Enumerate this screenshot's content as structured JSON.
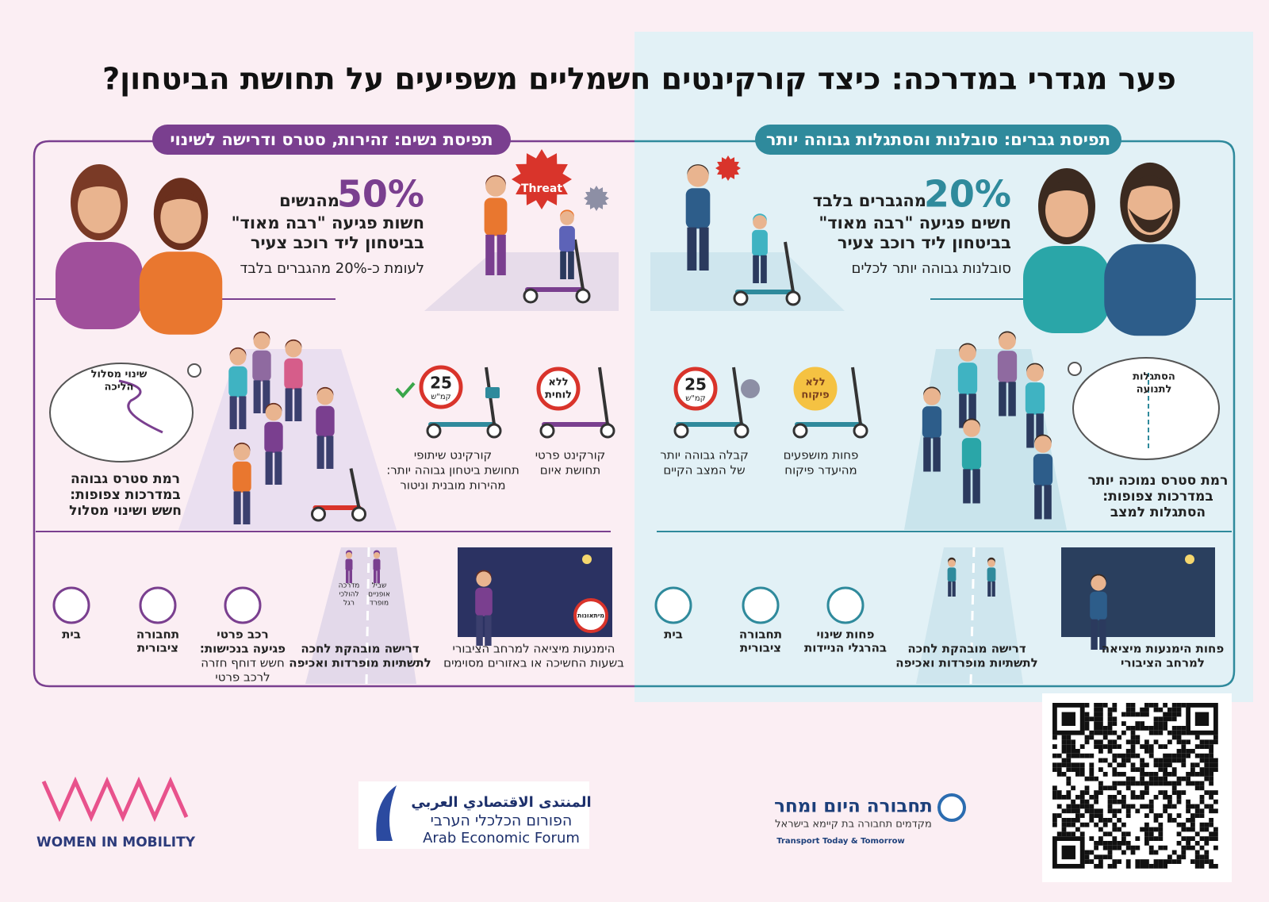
{
  "title": "פער מגדרי במדרכה: כיצד קורקינטים חשמליים משפיעים על תחושת הביטחון?",
  "women": {
    "header": "תפיסת נשים: זהירות, סטרס ודרישה לשינוי",
    "stat": {
      "value": "50%",
      "lines": [
        "מהנשים",
        "חשות פגיעה \"רבה מאוד\"",
        "בביטחון ליד רוכב צעיר"
      ],
      "note": "לעומת כ-20% מהגברים בלבד"
    },
    "threat_badge": "Threat",
    "thought": [
      "שינוי מסלול",
      "הליכה"
    ],
    "stress": [
      "רמת סטרס גבוהה",
      "במדרכות צפופות:",
      "חשש ושינוי מסלול"
    ],
    "private_scooter": {
      "sign": [
        "ללא",
        "לוחית"
      ],
      "caption": [
        "קורקינט פרטי",
        "תחושת איום"
      ]
    },
    "shared_scooter": {
      "sign": [
        "25",
        "קמ\"ש"
      ],
      "caption": [
        "קורקינט שיתופי",
        "תחושת ביטחון גבוהה יותר:",
        "מהירות מובנית וניטור"
      ]
    },
    "night": {
      "sign": "מיתאונות",
      "caption": [
        "הימנעות מיציאה למרחב הציבורי",
        "בשעות החשיכה או באזורים מסוימים"
      ]
    },
    "lanes": {
      "sidewalk": [
        "מדרכה",
        "להולכי",
        "רגל"
      ],
      "bike_lane": [
        "שביל",
        "אופניים",
        "מופרד"
      ],
      "caption": [
        "דרישה מובהקת לחכה",
        "לתשתיות מופרדות ואכיפה"
      ]
    },
    "car": [
      "רכב פרטי",
      "פגיעה בנכישות:",
      "חשש דוחף חזרה",
      "לרכב פרטי"
    ],
    "transit": [
      "תחבורה",
      "ציבורית"
    ],
    "home": "בית"
  },
  "men": {
    "header": "תפיסת גברים: סובלנות והסתגלות גבוהה יותר",
    "stat": {
      "value": "20%",
      "lines": [
        "מהגברים בלבד",
        "חשים פגיעה \"רבה מאוד\"",
        "בביטחון ליד רוכב צעיר"
      ],
      "note": "סובלנות גבוהה יותר לכלים"
    },
    "thought": [
      "הסתגלות",
      "לתנועה"
    ],
    "stress": [
      "רמת סטרס נמוכה יותר",
      "במדרכות צפופות:",
      "הסתגלות למצב"
    ],
    "speed_scooter": {
      "sign": [
        "25",
        "קמ\"ש"
      ],
      "caption": [
        "קבלה גבוהה יותר",
        "של המצב הקיים"
      ]
    },
    "unsupervised_scooter": {
      "sign": [
        "ללא",
        "פיקוח"
      ],
      "caption": [
        "פחות מושפעים",
        "מהיעדר פיקוח"
      ]
    },
    "night": {
      "caption": [
        "פחות הימנעות מיציאה",
        "למרחב הציבורי"
      ]
    },
    "lanes": {
      "caption": [
        "דרישה מובהקת לחכה",
        "לתשתיות מופרדות ואכיפה"
      ]
    },
    "mobility": [
      "פחות שינוי",
      "בהרגלי הניידות"
    ],
    "transit": [
      "תחבורה",
      "ציבורית"
    ],
    "home": "בית"
  },
  "logos": {
    "women_in_mobility": "WOMEN IN MOBILITY",
    "arab_economic_forum": [
      "المنتدى الاقتصادي العربي",
      "הפורום הכלכלי הערבי",
      "Arab Economic Forum"
    ],
    "transport_today": [
      "תחבורה היום ומחר",
      "מקדמים תחבורה בת קיימא בישראל",
      "Transport Today & Tomorrow"
    ]
  }
}
